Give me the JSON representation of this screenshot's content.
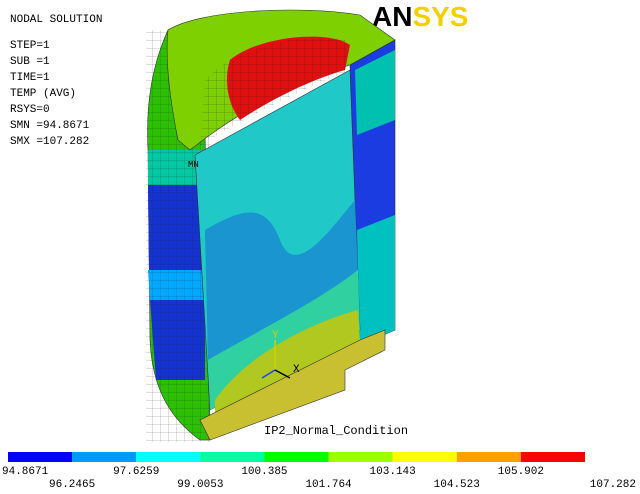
{
  "info": {
    "lines": [
      "NODAL SOLUTION",
      "STEP=1",
      "SUB =1",
      "TIME=1",
      "TEMP      (AVG)",
      "RSYS=0",
      "SMN =94.8671",
      "SMX =107.282"
    ]
  },
  "logo": "ANSYS",
  "model": {
    "min_marker": "MN",
    "axis_y": "Y",
    "axis_x": "X",
    "label": "IP2_Normal_Condition"
  },
  "legend": {
    "colors": [
      "#0000ff",
      "#0099ff",
      "#00ffff",
      "#00ffa0",
      "#00ff00",
      "#a0ff00",
      "#ffff00",
      "#ffa000",
      "#ff0000"
    ],
    "labels": [
      "94.8671",
      "96.2465",
      "97.6259",
      "99.0053",
      "100.385",
      "101.764",
      "103.143",
      "104.523",
      "105.902",
      "107.282"
    ]
  }
}
